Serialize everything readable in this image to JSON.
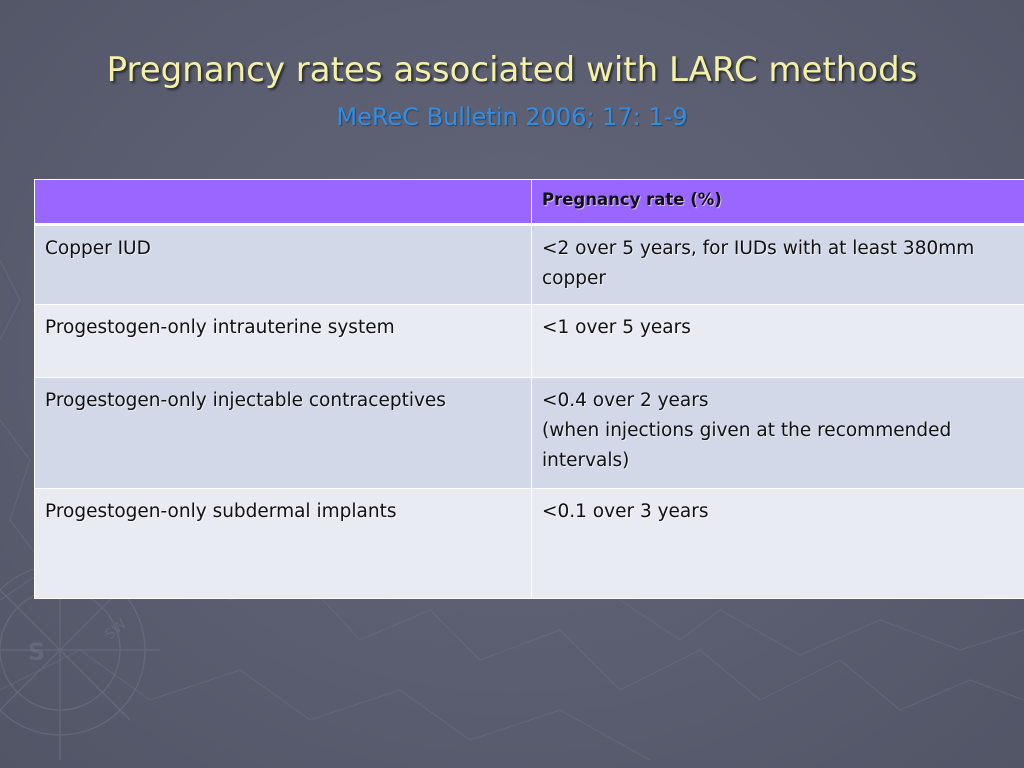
{
  "slide": {
    "title": "Pregnancy rates associated with LARC methods",
    "subtitle": "MeReC Bulletin 2006; 17: 1-9"
  },
  "table": {
    "headers": [
      "",
      "Pregnancy rate (%)"
    ],
    "rows": [
      [
        "Copper IUD",
        "<2 over 5 years, for IUDs with at least 380mm copper"
      ],
      [
        "Progestogen-only intrauterine system",
        "<1 over 5 years"
      ],
      [
        "Progestogen-only injectable contraceptives",
        "<0.4 over 2 years\n(when injections given at the recommended intervals)"
      ],
      [
        "Progestogen-only subdermal implants",
        "<0.1 over 3 years"
      ]
    ]
  },
  "colors": {
    "background": "#585c6f",
    "title": "#f4f1a6",
    "subtitle": "#2f8fe8",
    "header": "#9966ff",
    "row_dark": "#d2d8e8",
    "row_light": "#e9ebf3"
  }
}
